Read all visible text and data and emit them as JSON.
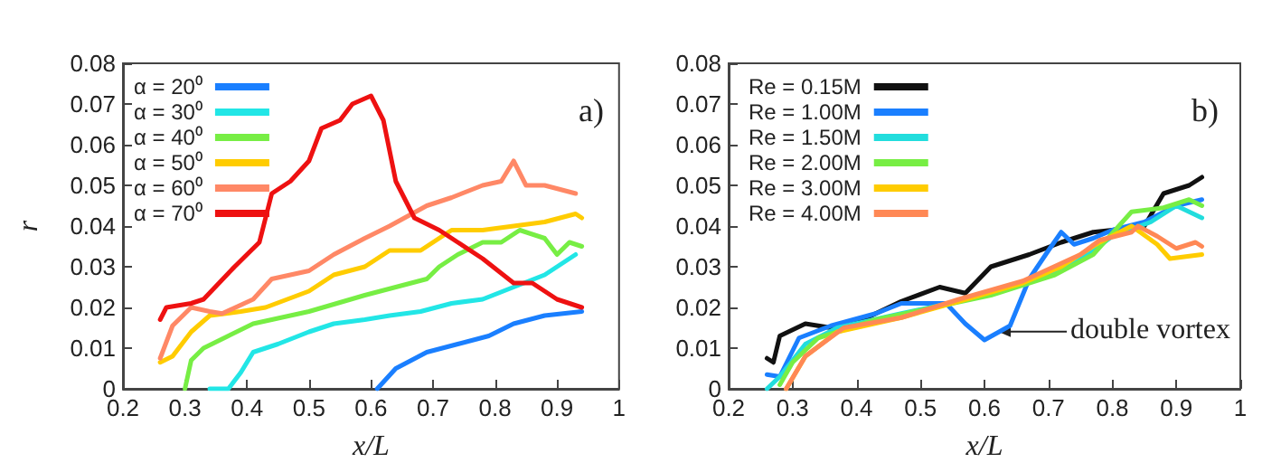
{
  "chart_data": [
    {
      "type": "line",
      "xlabel": "x/L",
      "ylabel": "r",
      "xlim": [
        0.2,
        1
      ],
      "ylim": [
        0,
        0.08
      ],
      "xticks": [
        0.2,
        0.3,
        0.4,
        0.5,
        0.6,
        0.7,
        0.8,
        0.9,
        1
      ],
      "yticks": [
        0,
        0.01,
        0.02,
        0.03,
        0.04,
        0.05,
        0.06,
        0.07,
        0.08
      ],
      "legend": "top left",
      "marker": "none",
      "annotations": [
        "a)"
      ],
      "series": [
        {
          "name": "α = 20⁰",
          "color": "#1a7fff",
          "x": [
            0.61,
            0.64,
            0.69,
            0.74,
            0.79,
            0.83,
            0.88,
            0.94
          ],
          "values": [
            0,
            0.005,
            0.009,
            0.011,
            0.013,
            0.016,
            0.018,
            0.019
          ]
        },
        {
          "name": "α = 30⁰",
          "color": "#22e6e6",
          "x": [
            0.34,
            0.37,
            0.39,
            0.41,
            0.45,
            0.5,
            0.54,
            0.59,
            0.63,
            0.68,
            0.73,
            0.78,
            0.83,
            0.88,
            0.93
          ],
          "values": [
            0,
            0,
            0.004,
            0.009,
            0.011,
            0.014,
            0.016,
            0.017,
            0.018,
            0.019,
            0.021,
            0.022,
            0.025,
            0.028,
            0.033
          ]
        },
        {
          "name": "α = 40⁰",
          "color": "#77ee44",
          "x": [
            0.3,
            0.31,
            0.33,
            0.37,
            0.41,
            0.5,
            0.59,
            0.69,
            0.71,
            0.74,
            0.78,
            0.81,
            0.84,
            0.88,
            0.9,
            0.92,
            0.94
          ],
          "values": [
            0,
            0.007,
            0.01,
            0.013,
            0.016,
            0.019,
            0.023,
            0.027,
            0.03,
            0.033,
            0.036,
            0.036,
            0.039,
            0.037,
            0.033,
            0.036,
            0.035
          ]
        },
        {
          "name": "α = 50⁰",
          "color": "#ffcc00",
          "x": [
            0.26,
            0.28,
            0.31,
            0.34,
            0.39,
            0.43,
            0.5,
            0.54,
            0.59,
            0.63,
            0.68,
            0.73,
            0.78,
            0.83,
            0.88,
            0.93,
            0.94
          ],
          "values": [
            0.0065,
            0.008,
            0.014,
            0.018,
            0.019,
            0.02,
            0.024,
            0.028,
            0.03,
            0.034,
            0.034,
            0.039,
            0.039,
            0.04,
            0.041,
            0.043,
            0.042
          ]
        },
        {
          "name": "α = 60⁰",
          "color": "#ff8866",
          "x": [
            0.26,
            0.28,
            0.31,
            0.34,
            0.36,
            0.41,
            0.44,
            0.5,
            0.54,
            0.59,
            0.63,
            0.69,
            0.73,
            0.78,
            0.81,
            0.83,
            0.85,
            0.88,
            0.93
          ],
          "values": [
            0.0075,
            0.0155,
            0.02,
            0.019,
            0.0185,
            0.022,
            0.027,
            0.029,
            0.033,
            0.037,
            0.04,
            0.045,
            0.047,
            0.05,
            0.051,
            0.056,
            0.05,
            0.05,
            0.048
          ]
        },
        {
          "name": "α = 70⁰",
          "color": "#ee1111",
          "x": [
            0.26,
            0.27,
            0.31,
            0.33,
            0.38,
            0.42,
            0.44,
            0.47,
            0.5,
            0.52,
            0.55,
            0.57,
            0.6,
            0.62,
            0.64,
            0.67,
            0.71,
            0.74,
            0.78,
            0.83,
            0.86,
            0.9,
            0.94
          ],
          "values": [
            0.017,
            0.02,
            0.021,
            0.022,
            0.03,
            0.036,
            0.048,
            0.051,
            0.056,
            0.064,
            0.066,
            0.07,
            0.072,
            0.066,
            0.051,
            0.042,
            0.039,
            0.036,
            0.032,
            0.026,
            0.026,
            0.022,
            0.02
          ]
        }
      ]
    },
    {
      "type": "line",
      "xlabel": "x/L",
      "xlim": [
        0.2,
        1
      ],
      "ylim": [
        0,
        0.08
      ],
      "xticks": [
        0.2,
        0.3,
        0.4,
        0.5,
        0.6,
        0.7,
        0.8,
        0.9,
        1
      ],
      "yticks": [
        0,
        0.01,
        0.02,
        0.03,
        0.04,
        0.05,
        0.06,
        0.07,
        0.08
      ],
      "legend": "top left",
      "marker": "none",
      "annotations": [
        "b)",
        {
          "text": "double vortex",
          "x": 0.61,
          "y": 0.0145
        }
      ],
      "series": [
        {
          "name": "Re = 0.15M",
          "color": "#111111",
          "x": [
            0.26,
            0.27,
            0.28,
            0.32,
            0.36,
            0.41,
            0.47,
            0.53,
            0.57,
            0.61,
            0.67,
            0.72,
            0.77,
            0.8,
            0.85,
            0.88,
            0.92,
            0.94
          ],
          "values": [
            0.0075,
            0.0065,
            0.013,
            0.016,
            0.015,
            0.017,
            0.0215,
            0.025,
            0.0235,
            0.03,
            0.033,
            0.036,
            0.0385,
            0.039,
            0.04,
            0.048,
            0.05,
            0.052
          ]
        },
        {
          "name": "Re = 1.00M",
          "color": "#1a7fff",
          "x": [
            0.26,
            0.28,
            0.31,
            0.36,
            0.43,
            0.47,
            0.54,
            0.57,
            0.6,
            0.64,
            0.67,
            0.7,
            0.72,
            0.74,
            0.77,
            0.8,
            0.85,
            0.9,
            0.94
          ],
          "values": [
            0.0035,
            0.003,
            0.0125,
            0.0155,
            0.0185,
            0.021,
            0.021,
            0.016,
            0.012,
            0.0155,
            0.027,
            0.034,
            0.0385,
            0.0355,
            0.037,
            0.039,
            0.041,
            0.045,
            0.0465
          ]
        },
        {
          "name": "Re = 1.50M",
          "color": "#22dddd",
          "x": [
            0.26,
            0.28,
            0.32,
            0.37,
            0.47,
            0.56,
            0.66,
            0.71,
            0.77,
            0.8,
            0.86,
            0.9,
            0.94
          ],
          "values": [
            0,
            0.003,
            0.011,
            0.015,
            0.0185,
            0.0215,
            0.026,
            0.029,
            0.034,
            0.0375,
            0.041,
            0.045,
            0.042
          ]
        },
        {
          "name": "Re = 2.00M",
          "color": "#77ee44",
          "x": [
            0.28,
            0.3,
            0.34,
            0.43,
            0.52,
            0.61,
            0.71,
            0.77,
            0.83,
            0.88,
            0.92,
            0.94
          ],
          "values": [
            0.001,
            0.0065,
            0.0125,
            0.017,
            0.02,
            0.023,
            0.028,
            0.033,
            0.0435,
            0.0445,
            0.0465,
            0.045
          ]
        },
        {
          "name": "Re = 3.00M",
          "color": "#ffcc00",
          "x": [
            0.29,
            0.32,
            0.37,
            0.47,
            0.56,
            0.66,
            0.72,
            0.78,
            0.83,
            0.87,
            0.89,
            0.94
          ],
          "values": [
            0,
            0.008,
            0.014,
            0.0175,
            0.0215,
            0.026,
            0.03,
            0.036,
            0.04,
            0.0355,
            0.032,
            0.033
          ]
        },
        {
          "name": "Re = 4.00M",
          "color": "#ff8855",
          "x": [
            0.29,
            0.32,
            0.38,
            0.47,
            0.56,
            0.66,
            0.75,
            0.78,
            0.83,
            0.84,
            0.87,
            0.9,
            0.93,
            0.94
          ],
          "values": [
            0,
            0.008,
            0.015,
            0.0175,
            0.022,
            0.0265,
            0.033,
            0.0365,
            0.0385,
            0.04,
            0.0375,
            0.0345,
            0.036,
            0.035
          ]
        }
      ]
    }
  ]
}
